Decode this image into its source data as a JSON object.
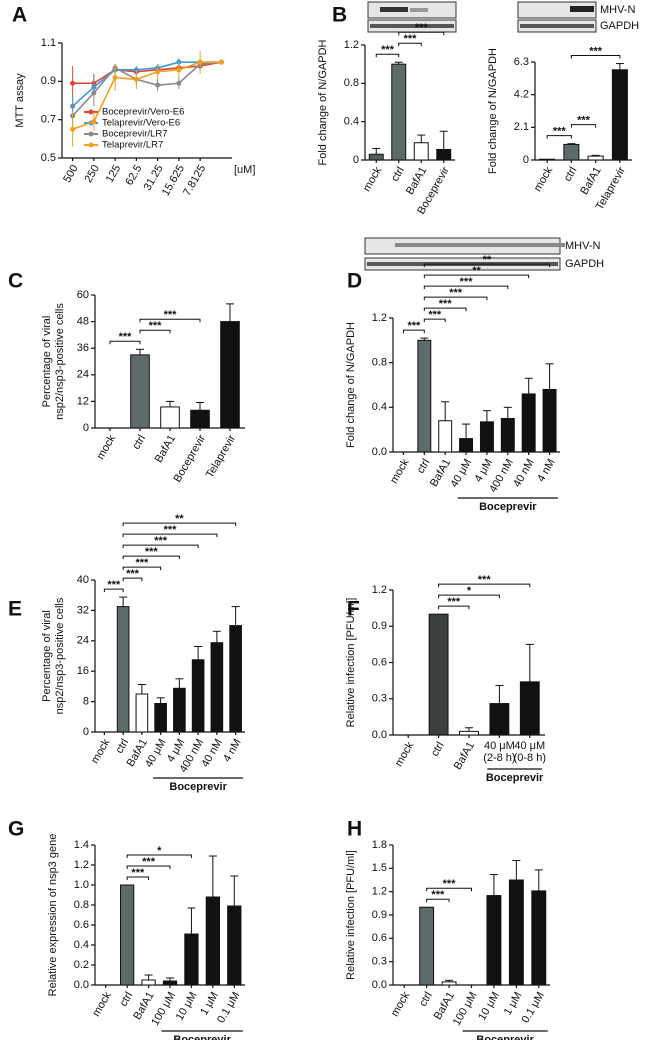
{
  "chart_data": [
    {
      "type": "line",
      "panel": "A",
      "ylabel": "MTT assay",
      "xlabel": "[uM]",
      "categories": [
        "500",
        "250",
        "125",
        "62.5",
        "31.25",
        "15.625",
        "7.8125",
        null
      ],
      "series": [
        {
          "name": "Boceprevir/Vero-E6",
          "color": "#e8412c",
          "values": [
            0.89,
            0.89,
            0.96,
            0.95,
            0.96,
            0.97,
            0.98,
            1.0
          ],
          "errors": [
            0.09,
            0.05,
            0.03,
            0.02,
            0.03,
            0.02,
            0.02,
            0
          ]
        },
        {
          "name": "Telaprevir/Vero-E6",
          "color": "#3a9ad9",
          "values": [
            0.77,
            0.87,
            0.96,
            0.96,
            0.97,
            1.0,
            1.0,
            1.0
          ],
          "errors": [
            0.06,
            0.05,
            0.03,
            0.02,
            0.02,
            0.02,
            0.02,
            0
          ]
        },
        {
          "name": "Boceprevir/LR7",
          "color": "#8a8a8a",
          "values": [
            0.72,
            0.84,
            0.97,
            0.91,
            0.88,
            0.89,
            0.99,
            1.0
          ],
          "errors": [
            0.08,
            0.07,
            0.02,
            0.03,
            0.03,
            0.03,
            0.02,
            0
          ]
        },
        {
          "name": "Telaprevir/LR7",
          "color": "#f0a020",
          "values": [
            0.65,
            0.69,
            0.92,
            0.91,
            0.95,
            0.96,
            1.0,
            1.0
          ],
          "errors": [
            0.09,
            0.05,
            0.07,
            0.05,
            0.04,
            0.04,
            0.06,
            0
          ]
        }
      ],
      "ylim": [
        0.5,
        1.1
      ],
      "yticks": [
        0.5,
        0.7,
        0.9,
        1.1
      ]
    },
    {
      "type": "bar",
      "panel": "B",
      "ylabel": "Fold change of N/GAPDH",
      "categories": [
        "mock",
        "ctrl",
        "BafA1",
        "Boceprevir"
      ],
      "values": [
        0.06,
        1.0,
        0.18,
        0.11
      ],
      "errors": [
        0.06,
        0.02,
        0.08,
        0.19
      ],
      "colors": [
        "#555b5b",
        "#5e6b6b",
        "#ffffff",
        "#111111"
      ],
      "ylim": [
        0,
        1.2
      ],
      "yticks": [
        0,
        0.4,
        0.8,
        1.2
      ],
      "significance": [
        {
          "from": 0,
          "to": 1,
          "label": "***"
        },
        {
          "from": 1,
          "to": 2,
          "label": "***"
        },
        {
          "from": 1,
          "to": 3,
          "label": "***"
        }
      ]
    },
    {
      "type": "bar",
      "ylabel": "Fold change of N/GAPDH",
      "blot_labels": [
        "MHV-N",
        "GAPDH"
      ],
      "categories": [
        "mock",
        "ctrl",
        "BafA1",
        "Telaprevir"
      ],
      "values": [
        0.05,
        1.0,
        0.25,
        5.8
      ],
      "errors": [
        0,
        0.05,
        0.05,
        0.4
      ],
      "colors": [
        "#555b5b",
        "#5e6b6b",
        "#ffffff",
        "#111111"
      ],
      "ylim": [
        0,
        6.3
      ],
      "yticks": [
        0,
        2.1,
        4.2,
        6.3
      ],
      "significance": [
        {
          "from": 0,
          "to": 1,
          "label": "***"
        },
        {
          "from": 1,
          "to": 2,
          "label": "***"
        },
        {
          "from": 1,
          "to": 3,
          "label": "***"
        }
      ]
    },
    {
      "type": "bar",
      "panel": "C",
      "ylabel": [
        "Percentage of viral",
        "nsp2/nsp3-positive cells"
      ],
      "categories": [
        "mock",
        "ctrl",
        "BafA1",
        "Boceprevir",
        "Telaprevir"
      ],
      "values": [
        0,
        33,
        9.5,
        8,
        48
      ],
      "errors": [
        0,
        2.5,
        2.5,
        3.5,
        8
      ],
      "colors": [
        "#555b5b",
        "#5e6b6b",
        "#ffffff",
        "#111111",
        "#111111"
      ],
      "ylim": [
        0,
        60
      ],
      "yticks": [
        0,
        12,
        24,
        36,
        48,
        60
      ],
      "significance": [
        {
          "from": 0,
          "to": 1,
          "label": "***"
        },
        {
          "from": 1,
          "to": 2,
          "label": "***"
        },
        {
          "from": 1,
          "to": 3,
          "label": "***"
        }
      ]
    },
    {
      "type": "bar",
      "panel": "D",
      "ylabel": "Fold change of N/GAPDH",
      "blot_labels": [
        "MHV-N",
        "GAPDH"
      ],
      "categories": [
        "mock",
        "ctrl",
        "BafA1",
        "40 μM",
        "4 μM",
        "400 nM",
        "40 nM",
        "4 nM"
      ],
      "values": [
        0,
        1.0,
        0.28,
        0.12,
        0.27,
        0.3,
        0.52,
        0.56
      ],
      "errors": [
        0,
        0.02,
        0.17,
        0.13,
        0.1,
        0.1,
        0.14,
        0.23
      ],
      "colors": [
        "#555b5b",
        "#5e6b6b",
        "#ffffff",
        "#111111",
        "#111111",
        "#111111",
        "#111111",
        "#111111"
      ],
      "ylim": [
        0,
        1.2
      ],
      "yticks": [
        {
          "value": 0,
          "label": "0.0"
        },
        0.4,
        0.8,
        1.2
      ],
      "group": {
        "label": "Boceprevir",
        "from": 3,
        "to": 7
      },
      "significance": [
        {
          "from": 0,
          "to": 1,
          "label": "***"
        },
        {
          "from": 1,
          "to": 2,
          "label": "***"
        },
        {
          "from": 1,
          "to": 3,
          "label": "***"
        },
        {
          "from": 1,
          "to": 4,
          "label": "***"
        },
        {
          "from": 1,
          "to": 5,
          "label": "***"
        },
        {
          "from": 1,
          "to": 6,
          "label": "**"
        },
        {
          "from": 1,
          "to": 7,
          "label": "**"
        }
      ]
    },
    {
      "type": "bar",
      "panel": "E",
      "ylabel": [
        "Percentage of viral",
        "nsp2/nsp3-positive cells"
      ],
      "categories": [
        "mock",
        "ctrl",
        "BafA1",
        "40 μM",
        "4 μM",
        "400 nM",
        "40 nM",
        "4 nM"
      ],
      "values": [
        0,
        33,
        10,
        7.5,
        11.5,
        19,
        23.5,
        28
      ],
      "errors": [
        0,
        2.5,
        2.5,
        1.5,
        2.5,
        3.5,
        3,
        5
      ],
      "colors": [
        "#555b5b",
        "#5e6b6b",
        "#ffffff",
        "#111111",
        "#111111",
        "#111111",
        "#111111",
        "#111111"
      ],
      "ylim": [
        0,
        40
      ],
      "yticks": [
        0,
        8,
        16,
        24,
        32,
        40
      ],
      "group": {
        "label": "Boceprevir",
        "from": 3,
        "to": 7
      },
      "significance": [
        {
          "from": 0,
          "to": 1,
          "label": "***"
        },
        {
          "from": 1,
          "to": 2,
          "label": "***"
        },
        {
          "from": 1,
          "to": 3,
          "label": "***"
        },
        {
          "from": 1,
          "to": 4,
          "label": "***"
        },
        {
          "from": 1,
          "to": 5,
          "label": "***"
        },
        {
          "from": 1,
          "to": 6,
          "label": "***"
        },
        {
          "from": 1,
          "to": 7,
          "label": "**"
        }
      ]
    },
    {
      "type": "bar",
      "panel": "F",
      "ylabel": "Relative infection [PFU/ml]",
      "categories": [
        "mock",
        "ctrl",
        "BafA1",
        [
          "40 μM",
          "(2-8 h)"
        ],
        [
          "40 μM",
          "(0-8 h)"
        ]
      ],
      "values": [
        0,
        1.0,
        0.03,
        0.26,
        0.44
      ],
      "errors": [
        0,
        0,
        0.03,
        0.15,
        0.31
      ],
      "colors": [
        "#3a3f3f",
        "#3a3f3f",
        "#ffffff",
        "#111111",
        "#111111"
      ],
      "ylim": [
        0,
        1.2
      ],
      "yticks": [
        {
          "value": 0,
          "label": "0.0"
        },
        0.3,
        0.6,
        0.9,
        1.2
      ],
      "group": {
        "label": "Boceprevir",
        "from": 3,
        "to": 4
      },
      "significance": [
        {
          "from": 1,
          "to": 2,
          "label": "***"
        },
        {
          "from": 1,
          "to": 3,
          "label": "*"
        },
        {
          "from": 1,
          "to": 4,
          "label": "***"
        }
      ]
    },
    {
      "type": "bar",
      "panel": "G",
      "ylabel": "Relative expression of nsp3 gene",
      "categories": [
        "mock",
        "ctrl",
        "BafA1",
        "100 μM",
        "10 μM",
        "1 μM",
        "0.1 μM"
      ],
      "values": [
        0,
        1.0,
        0.05,
        0.04,
        0.51,
        0.88,
        0.79
      ],
      "errors": [
        0,
        0,
        0.05,
        0.03,
        0.26,
        0.41,
        0.3
      ],
      "colors": [
        "#555b5b",
        "#5e6b6b",
        "#ffffff",
        "#111111",
        "#111111",
        "#111111",
        "#111111"
      ],
      "ylim": [
        0,
        1.4
      ],
      "yticks": [
        {
          "value": 0,
          "label": "0.0"
        },
        0.2,
        0.4,
        0.6,
        0.8,
        {
          "value": 1,
          "label": "1.0"
        },
        1.2,
        1.4
      ],
      "group": {
        "label": "Boceprevir",
        "from": 3,
        "to": 6
      },
      "significance": [
        {
          "from": 1,
          "to": 2,
          "label": "***"
        },
        {
          "from": 1,
          "to": 3,
          "label": "***"
        },
        {
          "from": 1,
          "to": 4,
          "label": "*"
        }
      ]
    },
    {
      "type": "bar",
      "panel": "H",
      "ylabel": "Relative infection [PFU/ml]",
      "categories": [
        "mock",
        "ctrl",
        "BafA1",
        "100 μM",
        "10 μM",
        "1 μM",
        "0.1 μM"
      ],
      "values": [
        0,
        1.0,
        0.04,
        0,
        1.15,
        1.35,
        1.21
      ],
      "errors": [
        0,
        0,
        0.02,
        0,
        0.27,
        0.25,
        0.27
      ],
      "colors": [
        "#555b5b",
        "#5e6b6b",
        "#ffffff",
        "#111111",
        "#111111",
        "#111111",
        "#111111"
      ],
      "ylim": [
        0,
        1.8
      ],
      "yticks": [
        {
          "value": 0,
          "label": "0.0"
        },
        0.3,
        0.6,
        0.9,
        1.2,
        1.5,
        1.8
      ],
      "group": {
        "label": "Boceprevir",
        "from": 3,
        "to": 6
      },
      "significance": [
        {
          "from": 1,
          "to": 2,
          "label": "***"
        },
        {
          "from": 1,
          "to": 3,
          "label": "***"
        }
      ]
    }
  ]
}
